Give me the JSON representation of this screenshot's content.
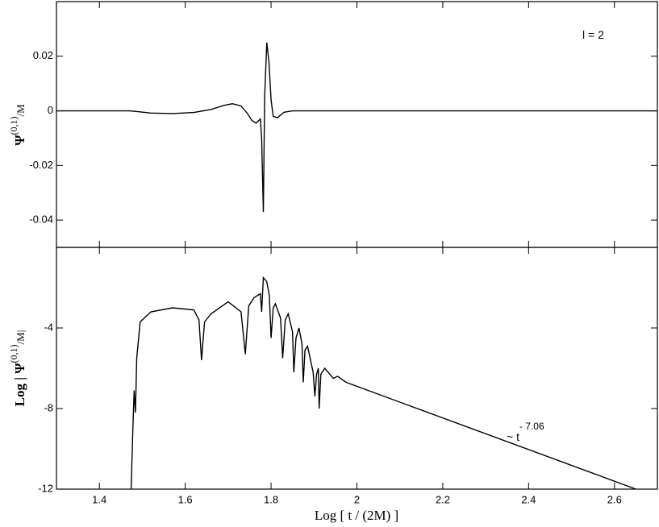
{
  "chart_data": [
    {
      "type": "line",
      "color": "#000000",
      "ylabel": {
        "symbol": "Ψ",
        "superscript": "(0,1)",
        "rest": "/M"
      },
      "annotation": "l = 2",
      "x": [
        1.3,
        1.47,
        1.49,
        1.52,
        1.57,
        1.62,
        1.66,
        1.69,
        1.71,
        1.73,
        1.745,
        1.755,
        1.765,
        1.775,
        1.778,
        1.782,
        1.785,
        1.79,
        1.795,
        1.8,
        1.805,
        1.815,
        1.83,
        1.85,
        2.7
      ],
      "values": [
        0,
        0,
        -0.0003,
        -0.0008,
        -0.001,
        -0.0006,
        0.0005,
        0.002,
        0.0026,
        0.0018,
        -0.001,
        -0.0035,
        -0.0045,
        -0.003,
        -0.01,
        -0.037,
        0.005,
        0.025,
        0.018,
        0.004,
        -0.002,
        -0.0025,
        -0.0005,
        0,
        0
      ],
      "xlim": [
        1.3,
        2.7
      ],
      "xticks": [
        1.4,
        1.6,
        1.8,
        2,
        2.2,
        2.4,
        2.6
      ],
      "ylim": [
        -0.05,
        0.04
      ],
      "yticks": [
        -0.04,
        -0.02,
        0,
        0.02
      ]
    },
    {
      "type": "line",
      "color": "#000000",
      "xlabel": "Log [ t / (2M) ]",
      "ylabel": {
        "symbol": "Log | Ψ",
        "superscript": "(0,1)",
        "rest": "/M|"
      },
      "annotation": {
        "base": "~ t",
        "exponent": "- 7.06"
      },
      "x": [
        1.474,
        1.478,
        1.481,
        1.482,
        1.484,
        1.487,
        1.495,
        1.52,
        1.57,
        1.62,
        1.632,
        1.638,
        1.645,
        1.66,
        1.7,
        1.73,
        1.74,
        1.748,
        1.76,
        1.775,
        1.778,
        1.782,
        1.79,
        1.796,
        1.8,
        1.805,
        1.81,
        1.822,
        1.827,
        1.833,
        1.84,
        1.85,
        1.853,
        1.858,
        1.865,
        1.872,
        1.875,
        1.879,
        1.885,
        1.898,
        1.902,
        1.906,
        1.91,
        1.912,
        1.916,
        1.925,
        1.945,
        1.955,
        1.975,
        2.65
      ],
      "values": [
        -12,
        -9,
        -7.1,
        -7.5,
        -8.2,
        -5.5,
        -3.7,
        -3.2,
        -3.0,
        -3.1,
        -3.6,
        -5.6,
        -3.7,
        -3.3,
        -2.7,
        -3.2,
        -5.3,
        -2.9,
        -2.5,
        -2.3,
        -3.2,
        -1.5,
        -1.7,
        -2.4,
        -4.5,
        -3.0,
        -2.8,
        -3.5,
        -5.5,
        -3.6,
        -3.3,
        -4.2,
        -6.2,
        -4.5,
        -4.0,
        -4.8,
        -6.7,
        -5.1,
        -4.9,
        -6.2,
        -7.4,
        -6.3,
        -6.0,
        -8.0,
        -6.3,
        -6.0,
        -6.5,
        -6.4,
        -6.7,
        -12
      ],
      "xlim": [
        1.3,
        2.7
      ],
      "xticks": [
        1.4,
        1.6,
        1.8,
        2,
        2.2,
        2.4,
        2.6
      ],
      "ylim": [
        -12,
        0
      ],
      "yticks": [
        -12,
        -8,
        -4
      ]
    }
  ]
}
